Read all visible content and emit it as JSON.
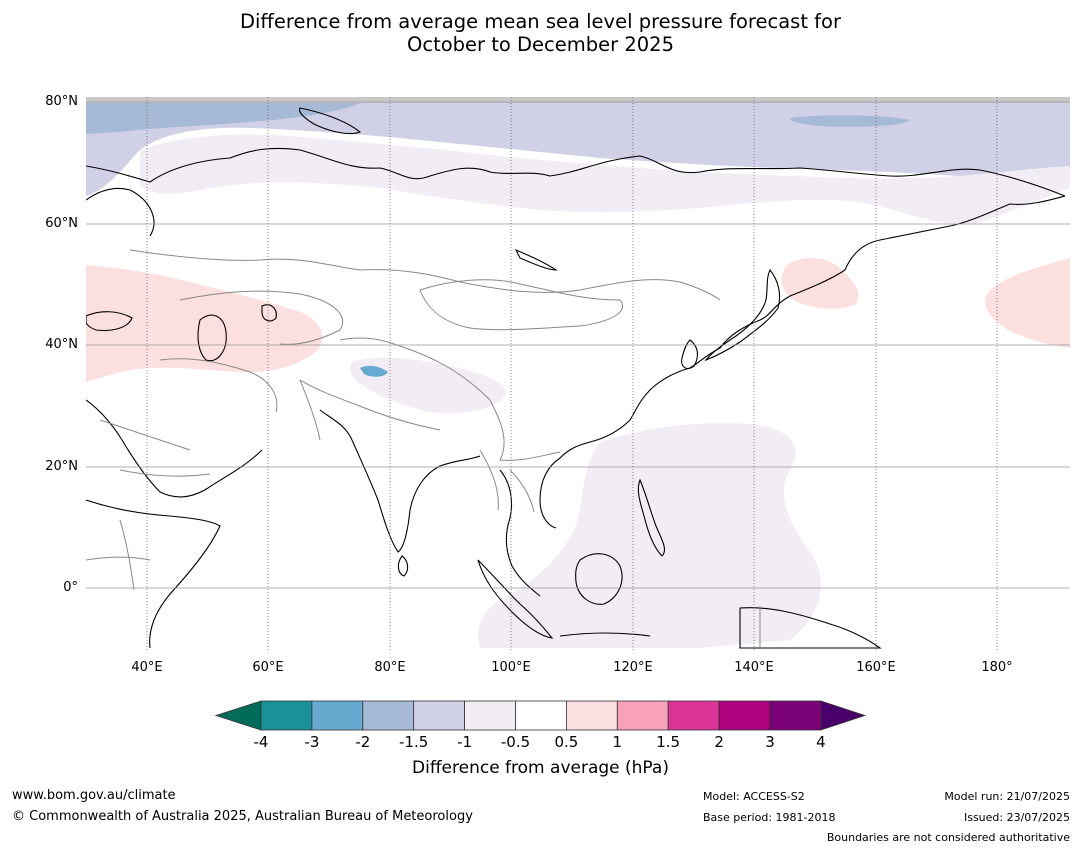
{
  "title": {
    "line1": "Difference from average mean sea level pressure forecast for",
    "line2": "October to December 2025"
  },
  "map": {
    "lat_labels": [
      "80°N",
      "60°N",
      "40°N",
      "20°N",
      "0°"
    ],
    "lon_labels": [
      "40°E",
      "60°E",
      "80°E",
      "100°E",
      "120°E",
      "140°E",
      "160°E",
      "180°"
    ],
    "lat_range": [
      -10,
      80
    ],
    "lon_range": [
      30,
      192
    ]
  },
  "colorbar": {
    "ticks": [
      "-4",
      "-3",
      "-2",
      "-1.5",
      "-1",
      "-0.5",
      "0.5",
      "1",
      "1.5",
      "2",
      "3",
      "4"
    ],
    "label": "Difference from average (hPa)",
    "colors": {
      "below_min": "#016c59",
      "bins": [
        "#1a9098",
        "#67a9cf",
        "#a6b9d6",
        "#d0d1e6",
        "#f2ecf5",
        "#ffffff",
        "#fcdfdf",
        "#f7a1bb",
        "#dd3497",
        "#ae017e",
        "#7a0177"
      ],
      "above_max": "#49006a"
    }
  },
  "footer": {
    "website": "www.bom.gov.au/climate",
    "copyright": "© Commonwealth of Australia 2025, Australian Bureau of Meteorology",
    "model": "Model: ACCESS-S2",
    "base_period": "Base period: 1981-2018",
    "model_run": "Model run: 21/07/2025",
    "issued": "Issued: 23/07/2025",
    "disclaimer": "Boundaries are not considered authoritative"
  }
}
